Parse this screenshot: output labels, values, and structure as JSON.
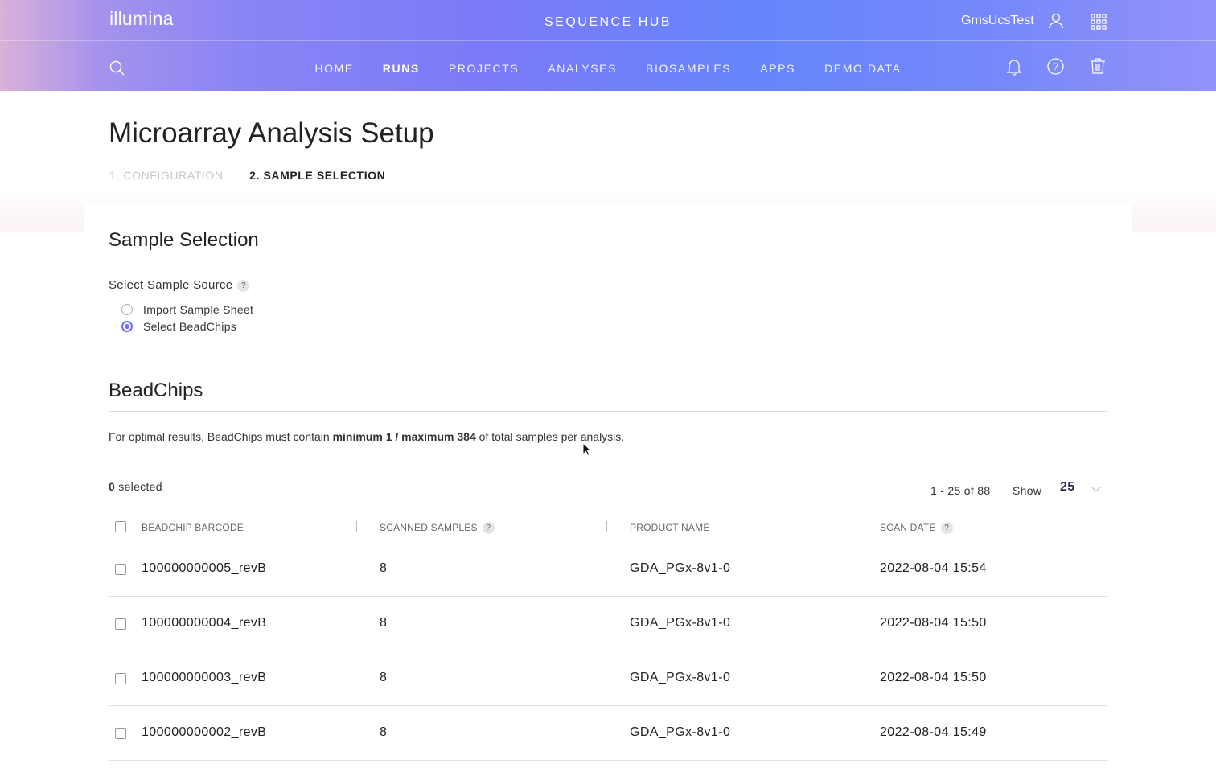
{
  "header": {
    "logo": "illumina",
    "app_title": "SEQUENCE HUB",
    "username": "GmsUcsTest",
    "nav": [
      {
        "label": "HOME",
        "active": false
      },
      {
        "label": "RUNS",
        "active": true
      },
      {
        "label": "PROJECTS",
        "active": false
      },
      {
        "label": "ANALYSES",
        "active": false
      },
      {
        "label": "BIOSAMPLES",
        "active": false
      },
      {
        "label": "APPS",
        "active": false
      },
      {
        "label": "DEMO DATA",
        "active": false
      }
    ],
    "icons": [
      "search-icon",
      "user-icon",
      "apps-grid-icon",
      "bell-icon",
      "help-icon",
      "trash-icon"
    ]
  },
  "page": {
    "title": "Microarray Analysis Setup",
    "steps": [
      "1. CONFIGURATION",
      "2. SAMPLE SELECTION"
    ],
    "active_step": 2
  },
  "sample_selection": {
    "heading": "Sample Selection",
    "source_label": "Select Sample Source",
    "help": "?",
    "options": [
      {
        "label": "Import Sample Sheet",
        "selected": false
      },
      {
        "label": "Select BeadChips",
        "selected": true
      }
    ]
  },
  "beadchips": {
    "heading": "BeadChips",
    "info_pre": "For optimal results, BeadChips must contain ",
    "info_bold": "minimum 1 / maximum 384",
    "info_post": " of total samples per analysis.",
    "selected_count": "0",
    "selected_label": " selected",
    "pagination": "1 - 25 of 88",
    "show_label": "Show",
    "page_size": "25",
    "columns": [
      "BEADCHIP BARCODE",
      "SCANNED SAMPLES",
      "PRODUCT NAME",
      "SCAN DATE"
    ],
    "rows": [
      {
        "barcode": "100000000005_revB",
        "samples": "8",
        "product": "GDA_PGx-8v1-0",
        "date": "2022-08-04 15:54"
      },
      {
        "barcode": "100000000004_revB",
        "samples": "8",
        "product": "GDA_PGx-8v1-0",
        "date": "2022-08-04 15:50"
      },
      {
        "barcode": "100000000003_revB",
        "samples": "8",
        "product": "GDA_PGx-8v1-0",
        "date": "2022-08-04 15:50"
      },
      {
        "barcode": "100000000002_revB",
        "samples": "8",
        "product": "GDA_PGx-8v1-0",
        "date": "2022-08-04 15:49"
      }
    ]
  },
  "colors": {
    "accent": "#6f6ff3",
    "header_mid": "#7b7af7"
  }
}
